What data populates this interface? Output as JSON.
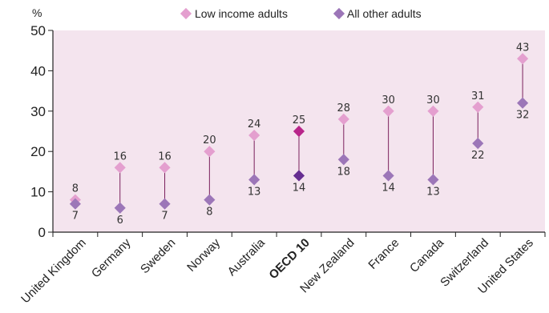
{
  "chart_data": {
    "type": "scatter",
    "ylabel": "%",
    "ylim": [
      0,
      50
    ],
    "yticks": [
      0,
      10,
      20,
      30,
      40,
      50
    ],
    "grid": false,
    "legend_position": "top",
    "categories": [
      "United Kingdom",
      "Germany",
      "Sweden",
      "Norway",
      "Australia",
      "OECD 10",
      "New Zealand",
      "France",
      "Canada",
      "Switzerland",
      "United States"
    ],
    "highlight_category": "OECD 10",
    "series": [
      {
        "name": "Low income adults",
        "values": [
          8,
          16,
          16,
          20,
          24,
          25,
          28,
          30,
          30,
          31,
          43
        ]
      },
      {
        "name": "All other adults",
        "values": [
          7,
          6,
          7,
          8,
          13,
          14,
          18,
          14,
          13,
          22,
          32
        ]
      }
    ]
  },
  "colors": {
    "plot_background": "#f4e4ee",
    "low_income": "#e49fcf",
    "all_other": "#9c76b8",
    "highlight_low_income": "#b8258a",
    "highlight_all_other": "#662d91",
    "connector": "#7a1f5c"
  }
}
